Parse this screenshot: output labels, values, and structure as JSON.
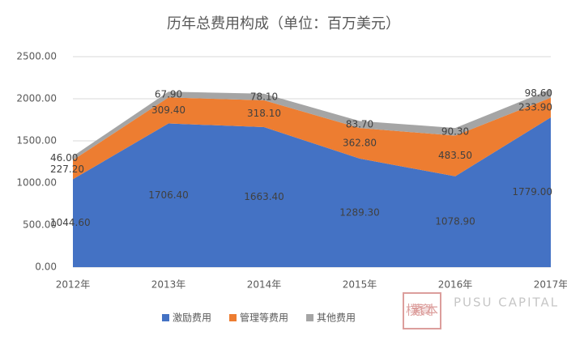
{
  "chart_data": {
    "type": "stacked_area",
    "title": "历年总费用构成（单位：百万美元）",
    "categories": [
      "2012年",
      "2013年",
      "2014年",
      "2015年",
      "2016年",
      "2017年"
    ],
    "series": [
      {
        "name": "激励费用",
        "color": "#4472c4",
        "values": [
          1044.6,
          1706.4,
          1663.4,
          1289.3,
          1078.9,
          1779.0
        ],
        "value_labels": [
          "1044.60",
          "1706.40",
          "1663.40",
          "1289.30",
          "1078.90",
          "1779.00"
        ]
      },
      {
        "name": "管理等费用",
        "color": "#ed7d31",
        "values": [
          227.2,
          309.4,
          318.1,
          362.8,
          483.5,
          233.9
        ],
        "value_labels": [
          "227.20",
          "309.40",
          "318.10",
          "362.80",
          "483.50",
          "233.90"
        ]
      },
      {
        "name": "其他费用",
        "color": "#a5a5a5",
        "values": [
          46.0,
          67.9,
          78.1,
          83.7,
          90.3,
          98.6
        ],
        "value_labels": [
          "46.00",
          "67.90",
          "78.10",
          "83.70",
          "90.30",
          "98.60"
        ]
      }
    ],
    "ylim": [
      0,
      2500
    ],
    "yticks": [
      {
        "value": 0,
        "label": "0.00"
      },
      {
        "value": 500,
        "label": "500.00"
      },
      {
        "value": 1000,
        "label": "1000.00"
      },
      {
        "value": 1500,
        "label": "1500.00"
      },
      {
        "value": 2000,
        "label": "2000.00"
      },
      {
        "value": 2500,
        "label": "2500.00"
      }
    ],
    "grid": true,
    "legend": "bottom",
    "watermark": [
      "樸素資本",
      "PUSU CAPITAL"
    ]
  }
}
